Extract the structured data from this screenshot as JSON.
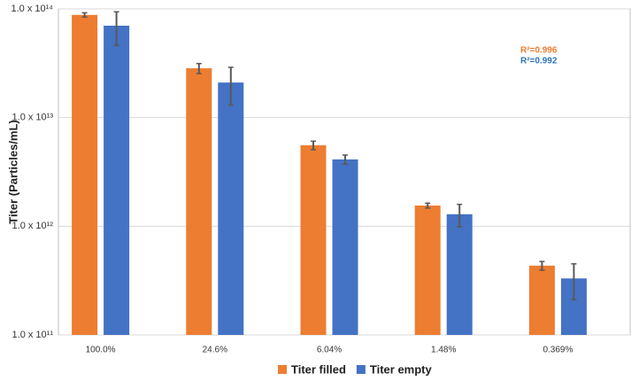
{
  "chart_data": {
    "type": "bar",
    "y_label": "Titer (Particles/mL)",
    "y_scale": "log",
    "grid": true,
    "legend_position": "bottom",
    "categories": [
      "100.0%",
      "24.6%",
      "6.04%",
      "1.48%",
      "0.369%"
    ],
    "series": [
      {
        "name": "Titer filled",
        "color": "#ed7d31",
        "values": [
          88000000000000.0,
          28400000000000.0,
          5560000000000.0,
          1550000000000.0,
          434000000000.0
        ],
        "errors": [
          4000000000000.0,
          3000000000000.0,
          500000000000.0,
          80000000000.0,
          40000000000.0
        ]
      },
      {
        "name": "Titer empty",
        "color": "#4472c4",
        "values": [
          70000000000000.0,
          21000000000000.0,
          4120000000000.0,
          1290000000000.0,
          331000000000.0
        ],
        "errors": [
          24000000000000.0,
          8000000000000.0,
          400000000000.0,
          300000000000.0,
          120000000000.0
        ]
      }
    ],
    "ylim": [
      100000000000.0,
      100000000000000.0
    ],
    "yticks": [
      {
        "value": 100000000000.0,
        "label": "1.0 x 10¹¹"
      },
      {
        "value": 1000000000000.0,
        "label": "1.0 x 10¹²"
      },
      {
        "value": 10000000000000.0,
        "label": "1.0 x 10¹³"
      },
      {
        "value": 100000000000000.0,
        "label": "1.0 x 10¹⁴"
      }
    ],
    "annotations": [
      {
        "text": "R²=0.996",
        "color": "#ed7d31"
      },
      {
        "text": "R²=0.992",
        "color": "#2e75b6"
      }
    ]
  }
}
